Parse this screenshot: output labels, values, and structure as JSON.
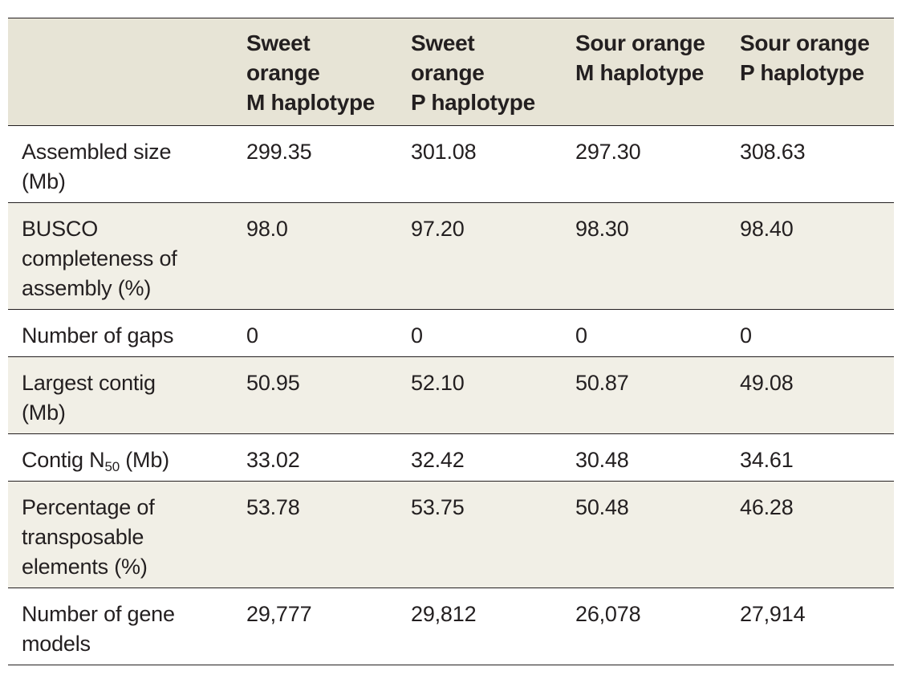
{
  "table": {
    "headers": [
      [],
      [
        "Sweet",
        "orange",
        "M haplotype"
      ],
      [
        "Sweet",
        "orange",
        "P haplotype"
      ],
      [
        "Sour orange",
        "M haplotype"
      ],
      [
        "Sour orange",
        "P haplotype"
      ]
    ],
    "rows": [
      {
        "label_lines": [
          "Assembled size",
          "(Mb)"
        ],
        "values": [
          "299.35",
          "301.08",
          "297.30",
          "308.63"
        ]
      },
      {
        "label_lines": [
          "BUSCO",
          "completeness of",
          "assembly (%)"
        ],
        "values": [
          "98.0",
          "97.20",
          "98.30",
          "98.40"
        ]
      },
      {
        "label_lines": [
          "Number of gaps"
        ],
        "values": [
          "0",
          "0",
          "0",
          "0"
        ]
      },
      {
        "label_lines": [
          "Largest contig",
          "(Mb)"
        ],
        "values": [
          "50.95",
          "52.10",
          "50.87",
          "49.08"
        ]
      },
      {
        "label_prefix": "Contig N",
        "label_sub": "50",
        "label_suffix": " (Mb)",
        "values": [
          "33.02",
          "32.42",
          "30.48",
          "34.61"
        ]
      },
      {
        "label_lines": [
          "Percentage of",
          "transposable",
          "elements (%)"
        ],
        "values": [
          "53.78",
          "53.75",
          "50.48",
          "46.28"
        ]
      },
      {
        "label_lines": [
          "Number of gene",
          "models"
        ],
        "values": [
          "29,777",
          "29,812",
          "26,078",
          "27,914"
        ]
      }
    ]
  }
}
